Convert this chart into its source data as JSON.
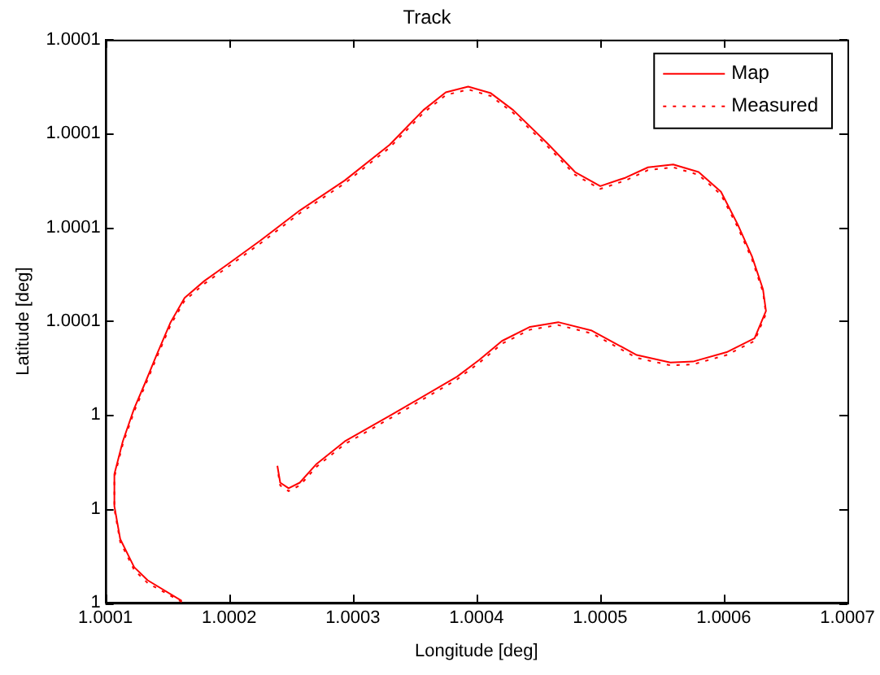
{
  "chart_data": {
    "type": "line",
    "title": "Track",
    "xlabel": "Longitude [deg]",
    "ylabel": "Latitude [deg]",
    "xlim": [
      1.0001,
      1.0007
    ],
    "xticks": [
      1.0001,
      1.0002,
      1.0003,
      1.0004,
      1.0005,
      1.0006,
      1.0007
    ],
    "ylim": [
      1.00002,
      1.00008
    ],
    "yticks": [
      {
        "value": 1.00002,
        "label": "1"
      },
      {
        "value": 1.00003,
        "label": "1"
      },
      {
        "value": 1.00004,
        "label": "1"
      },
      {
        "value": 1.00005,
        "label": "1.0001"
      },
      {
        "value": 1.00006,
        "label": "1.0001"
      },
      {
        "value": 1.00007,
        "label": "1.0001"
      },
      {
        "value": 1.00008,
        "label": "1.0001"
      }
    ],
    "grid": false,
    "legend": "top right",
    "marker": "none",
    "x": [
      1.0001617,
      1.0001341,
      1.0001232,
      1.0001119,
      1.0001072,
      1.0001072,
      1.000114,
      1.0001232,
      1.0001323,
      1.0001413,
      1.0001527,
      1.000164,
      1.00018,
      1.0001981,
      1.0002253,
      1.0002571,
      1.0002935,
      1.0003298,
      1.0003571,
      1.0003752,
      1.0003933,
      1.0004116,
      1.0004297,
      1.000457,
      1.0004797,
      1.0005001,
      1.0005206,
      1.0005387,
      1.0005591,
      1.0005796,
      1.0005977,
      1.0006113,
      1.0006228,
      1.0006317,
      1.0006341,
      1.0006249,
      1.0006023,
      1.0005751,
      1.0005568,
      1.0005296,
      1.0004933,
      1.0004661,
      1.0004433,
      1.0004206,
      1.0004025,
      1.0003843,
      1.0003388,
      1.0002935,
      1.0002707,
      1.0002571,
      1.0002481,
      1.0002413,
      1.000239
    ],
    "series": [
      {
        "name": "Map",
        "color": "#ff0000",
        "line_style": "solid",
        "values": [
          1.0000202,
          1.0000224,
          1.0000238,
          1.0000268,
          1.0000303,
          1.0000337,
          1.0000372,
          1.0000407,
          1.0000435,
          1.0000464,
          1.0000499,
          1.0000525,
          1.0000543,
          1.000056,
          1.0000586,
          1.0000618,
          1.000065,
          1.0000688,
          1.0000725,
          1.0000744,
          1.000075,
          1.0000743,
          1.0000725,
          1.000069,
          1.0000659,
          1.0000644,
          1.0000653,
          1.0000664,
          1.0000667,
          1.0000659,
          1.0000638,
          1.0000603,
          1.0000569,
          1.0000534,
          1.0000511,
          1.0000482,
          1.0000467,
          1.0000457,
          1.0000456,
          1.0000464,
          1.000049,
          1.0000499,
          1.0000494,
          1.0000479,
          1.0000459,
          1.0000441,
          1.0000406,
          1.0000372,
          1.0000348,
          1.0000328,
          1.0000322,
          1.0000328,
          1.0000346
        ]
      },
      {
        "name": "Measured",
        "color": "#ff0000",
        "line_style": "dotted",
        "values": [
          1.0000201,
          1.0000221,
          1.0000235,
          1.0000265,
          1.00003,
          1.0000334,
          1.0000369,
          1.0000404,
          1.0000432,
          1.0000461,
          1.0000496,
          1.0000522,
          1.000054,
          1.0000557,
          1.0000583,
          1.0000615,
          1.0000647,
          1.0000685,
          1.0000722,
          1.0000741,
          1.0000747,
          1.000074,
          1.0000722,
          1.0000687,
          1.0000656,
          1.0000641,
          1.000065,
          1.0000661,
          1.0000664,
          1.0000656,
          1.0000635,
          1.00006,
          1.0000566,
          1.0000531,
          1.0000508,
          1.0000479,
          1.0000464,
          1.0000454,
          1.0000453,
          1.0000461,
          1.0000487,
          1.0000496,
          1.0000491,
          1.0000476,
          1.0000456,
          1.0000438,
          1.0000403,
          1.0000369,
          1.0000345,
          1.0000325,
          1.0000319,
          1.0000325,
          1.0000343
        ]
      }
    ]
  }
}
